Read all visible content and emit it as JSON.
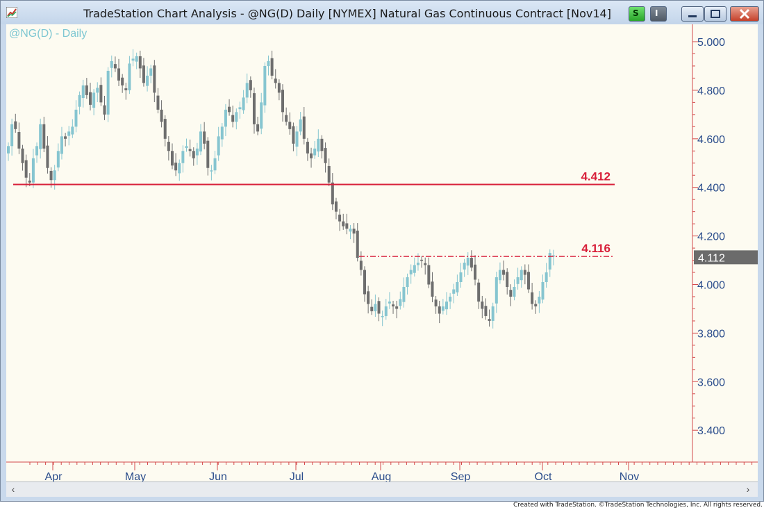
{
  "window": {
    "title": "TradeStation Chart Analysis - @NG(D) Daily [NYMEX] Natural Gas Continuous Contract [Nov14]",
    "btn_s": "S",
    "btn_i": "I"
  },
  "footer": "Created with TradeStation. ©TradeStation Technologies, Inc. All rights reserved.",
  "colors": {
    "up": "#86c5d0",
    "down": "#6e6e6e",
    "level": "#d8203a",
    "axis": "#d44a4a",
    "price_text": "#2b4d8c",
    "symbol_label": "#7ec7d2"
  },
  "chart_data": {
    "type": "candlestick",
    "symbol_label": "@NG(D) - Daily",
    "ylim": [
      3.25,
      5.03
    ],
    "y_ticks": [
      "5.000",
      "4.800",
      "4.600",
      "4.400",
      "4.200",
      "4.000",
      "3.800",
      "3.600",
      "3.400"
    ],
    "y_tick_values": [
      5.0,
      4.8,
      4.6,
      4.4,
      4.2,
      4.0,
      3.8,
      3.6,
      3.4
    ],
    "months": [
      "Apr",
      "May",
      "Jun",
      "Jul",
      "Aug",
      "Sep",
      "Oct",
      "Nov"
    ],
    "last_price": "4.112",
    "levels": [
      {
        "label": "4.412",
        "value": 4.412,
        "style": "solid"
      },
      {
        "label": "4.116",
        "value": 4.116,
        "style": "dashdot"
      }
    ],
    "closes": [
      4.57,
      4.66,
      4.64,
      4.56,
      4.5,
      4.44,
      4.42,
      4.52,
      4.57,
      4.66,
      4.56,
      4.48,
      4.43,
      4.47,
      4.55,
      4.61,
      4.6,
      4.63,
      4.65,
      4.72,
      4.78,
      4.82,
      4.78,
      4.74,
      4.79,
      4.81,
      4.75,
      4.7,
      4.88,
      4.92,
      4.89,
      4.84,
      4.82,
      4.8,
      4.91,
      4.93,
      4.94,
      4.89,
      4.83,
      4.86,
      4.89,
      4.79,
      4.72,
      4.67,
      4.6,
      4.55,
      4.49,
      4.47,
      4.5,
      4.55,
      4.57,
      4.55,
      4.52,
      4.56,
      4.63,
      4.58,
      4.48,
      4.47,
      4.52,
      4.61,
      4.65,
      4.72,
      4.71,
      4.67,
      4.71,
      4.73,
      4.77,
      4.83,
      4.8,
      4.66,
      4.63,
      4.75,
      4.9,
      4.92,
      4.86,
      4.83,
      4.79,
      4.71,
      4.67,
      4.64,
      4.58,
      4.63,
      4.68,
      4.6,
      4.54,
      4.52,
      4.56,
      4.6,
      4.55,
      4.5,
      4.42,
      4.33,
      4.3,
      4.26,
      4.24,
      4.23,
      4.23,
      4.21,
      4.11,
      4.06,
      3.96,
      3.92,
      3.89,
      3.92,
      3.88,
      3.87,
      3.91,
      3.93,
      3.91,
      3.9,
      3.94,
      3.99,
      4.03,
      4.06,
      4.08,
      4.09,
      4.1,
      4.08,
      4.0,
      3.95,
      3.91,
      3.88,
      3.91,
      3.93,
      3.95,
      3.98,
      4.01,
      4.05,
      4.09,
      4.11,
      4.07,
      4.02,
      3.93,
      3.9,
      3.87,
      3.85,
      3.91,
      4.03,
      4.06,
      4.04,
      3.99,
      3.95,
      3.99,
      4.03,
      4.06,
      4.04,
      3.98,
      3.92,
      3.91,
      3.95,
      4.01,
      4.05,
      4.13,
      4.12
    ]
  }
}
